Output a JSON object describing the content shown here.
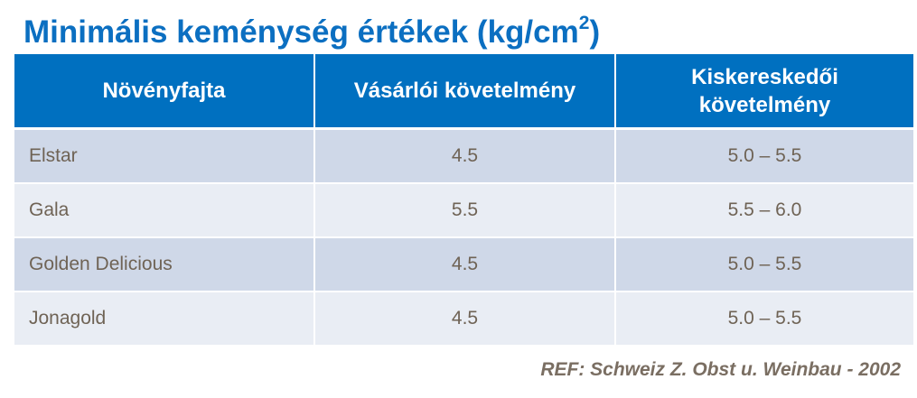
{
  "title": {
    "text": "Minimális keménység értékek (kg/cm",
    "superscript": "2",
    "closing": ")"
  },
  "table": {
    "headers": [
      "Növényfajta",
      "Vásárlói követelmény",
      "Kiskereskedői követelmény"
    ],
    "rows": [
      [
        "Elstar",
        "4.5",
        "5.0 – 5.5"
      ],
      [
        "Gala",
        "5.5",
        "5.5 – 6.0"
      ],
      [
        "Golden Delicious",
        "4.5",
        "5.0 – 5.5"
      ],
      [
        "Jonagold",
        "4.5",
        "5.0 – 5.5"
      ]
    ]
  },
  "reference": "REF: Schweiz Z. Obst u. Weinbau - 2002",
  "colors": {
    "title": "#0B6FC1",
    "header_bg": "#0070C0",
    "row_odd": "#CFD8E8",
    "row_even": "#E9EDF4",
    "cell_text": "#6F6355",
    "reference_text": "#7A6E62"
  }
}
